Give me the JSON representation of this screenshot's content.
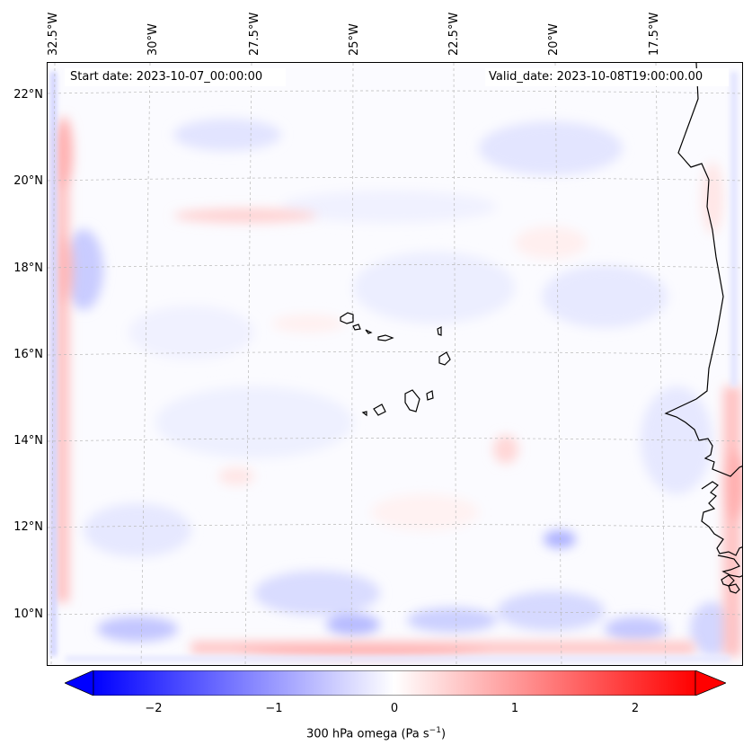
{
  "map": {
    "start_date": "Start date: 2023-10-07_00:00:00",
    "valid_date": "Valid_date: 2023-10-08T19:00:00.00",
    "longitude_labels": [
      "32.5°W",
      "30°W",
      "27.5°W",
      "25°W",
      "22.5°W",
      "20°W",
      "17.5°W"
    ],
    "latitude_labels": [
      "22°N",
      "20°N",
      "18°N",
      "16°N",
      "14°N",
      "12°N",
      "10°N"
    ],
    "gridlines": true,
    "field": "300 hPa omega",
    "colormap": {
      "negative": "#0000ff",
      "zero": "#ffffff",
      "positive": "#ff0000"
    }
  },
  "colorbar": {
    "ticks": [
      "−2",
      "−1",
      "0",
      "1",
      "2"
    ],
    "range": [
      -2.5,
      2.5
    ],
    "extend": "both",
    "label": "300 hPa omega (Pa s",
    "label_sup": "−1",
    "label_end": ")"
  }
}
